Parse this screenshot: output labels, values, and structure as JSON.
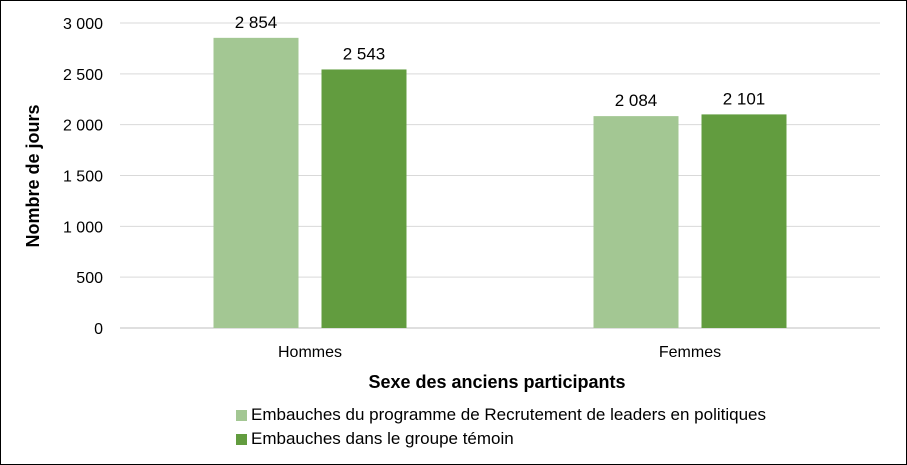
{
  "chart_data": {
    "type": "bar",
    "title": "",
    "xlabel": "Sexe des anciens participants",
    "ylabel": "Nombre de jours",
    "categories": [
      "Hommes",
      "Femmes"
    ],
    "ylim": [
      0,
      3000
    ],
    "yticks": [
      0,
      500,
      1000,
      1500,
      2000,
      2500,
      3000
    ],
    "ytick_labels": [
      "0",
      "500",
      "1 000",
      "1 500",
      "2 000",
      "2 500",
      "3 000"
    ],
    "grid": true,
    "legend_position": "bottom",
    "series": [
      {
        "name": "Embauches du programme de Recrutement de leaders en politiques",
        "values": [
          2854,
          2084
        ],
        "labels": [
          "2 854",
          "2 084"
        ],
        "color": "#a3c793"
      },
      {
        "name": "Embauches dans le groupe témoin",
        "values": [
          2543,
          2101
        ],
        "labels": [
          "2 543",
          "2 101"
        ],
        "color": "#629c3f"
      }
    ]
  }
}
